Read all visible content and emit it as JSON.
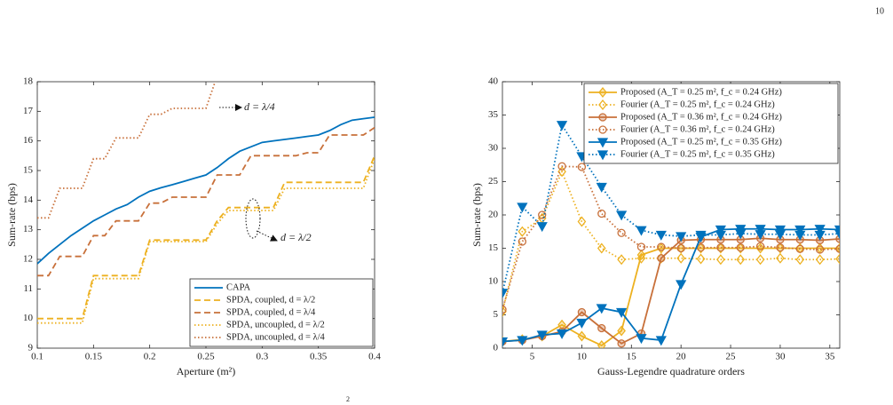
{
  "page_number": "10",
  "footer_fragment": "2",
  "chart_data": [
    {
      "type": "line",
      "xlabel": "Aperture (m²)",
      "ylabel": "Sum-rate (bps)",
      "x": [
        0.1,
        0.11,
        0.12,
        0.13,
        0.14,
        0.15,
        0.16,
        0.17,
        0.18,
        0.19,
        0.2,
        0.21,
        0.22,
        0.23,
        0.24,
        0.25,
        0.26,
        0.27,
        0.28,
        0.29,
        0.3,
        0.31,
        0.32,
        0.33,
        0.34,
        0.35,
        0.36,
        0.37,
        0.38,
        0.39,
        0.4
      ],
      "xlim": [
        0.1,
        0.4
      ],
      "xticks": [
        0.1,
        0.15,
        0.2,
        0.25,
        0.3,
        0.35,
        0.4
      ],
      "ylim": [
        9,
        18
      ],
      "yticks": [
        9,
        10,
        11,
        12,
        13,
        14,
        15,
        16,
        17,
        18
      ],
      "grid": false,
      "legend": "lower-right",
      "annotations": [
        "d = λ/4",
        "d = λ/2"
      ],
      "series": [
        {
          "name": "CAPA",
          "color": "#0072bd",
          "dash": "solid",
          "marker": "none",
          "values": [
            11.85,
            12.2,
            12.5,
            12.8,
            13.05,
            13.3,
            13.5,
            13.7,
            13.85,
            14.1,
            14.3,
            14.42,
            14.52,
            14.63,
            14.74,
            14.85,
            15.1,
            15.4,
            15.65,
            15.8,
            15.95,
            16.0,
            16.05,
            16.1,
            16.15,
            16.2,
            16.35,
            16.55,
            16.7,
            16.75,
            16.8
          ]
        },
        {
          "name": "SPDA, coupled, d = λ/2",
          "color": "#edb120",
          "dash": "dashed",
          "marker": "none",
          "values": [
            10.0,
            10.0,
            10.0,
            10.0,
            10.0,
            11.45,
            11.45,
            11.45,
            11.45,
            11.45,
            12.65,
            12.65,
            12.65,
            12.65,
            12.65,
            12.65,
            13.3,
            13.75,
            13.75,
            13.75,
            13.75,
            13.75,
            14.6,
            14.6,
            14.6,
            14.6,
            14.6,
            14.6,
            14.6,
            14.6,
            15.5
          ]
        },
        {
          "name": "SPDA, coupled, d = λ/4",
          "color": "#c8703a",
          "dash": "dashed",
          "marker": "none",
          "values": [
            11.45,
            11.45,
            12.1,
            12.1,
            12.1,
            12.8,
            12.8,
            13.3,
            13.3,
            13.3,
            13.9,
            13.9,
            14.1,
            14.1,
            14.1,
            14.1,
            14.85,
            14.85,
            14.85,
            15.5,
            15.5,
            15.5,
            15.5,
            15.5,
            15.6,
            15.6,
            16.2,
            16.2,
            16.2,
            16.2,
            16.45
          ]
        },
        {
          "name": "SPDA, uncoupled, d = λ/2",
          "color": "#edb120",
          "dash": "dotted",
          "marker": "none",
          "values": [
            9.85,
            9.85,
            9.85,
            9.85,
            9.85,
            11.35,
            11.35,
            11.35,
            11.35,
            11.35,
            12.6,
            12.6,
            12.6,
            12.6,
            12.6,
            12.6,
            13.2,
            13.65,
            13.65,
            13.65,
            13.65,
            13.65,
            14.4,
            14.4,
            14.4,
            14.4,
            14.4,
            14.4,
            14.4,
            14.4,
            15.4
          ]
        },
        {
          "name": "SPDA, uncoupled, d = λ/4",
          "color": "#c8703a",
          "dash": "dotted",
          "marker": "none",
          "values": [
            13.4,
            13.4,
            14.4,
            14.4,
            14.4,
            15.4,
            15.4,
            16.1,
            16.1,
            16.1,
            16.9,
            16.9,
            17.1,
            17.1,
            17.1,
            17.1,
            18.2,
            null,
            null,
            null,
            null,
            null,
            null,
            null,
            null,
            null,
            null,
            null,
            null,
            null,
            null
          ]
        }
      ]
    },
    {
      "type": "line",
      "xlabel": "Gauss-Legendre quadrature orders",
      "ylabel": "Sum-rate (bps)",
      "x": [
        2,
        4,
        6,
        8,
        10,
        12,
        14,
        16,
        18,
        20,
        22,
        24,
        26,
        28,
        30,
        32,
        34,
        36
      ],
      "xlim": [
        2,
        36
      ],
      "xticks": [
        5,
        10,
        15,
        20,
        25,
        30,
        35
      ],
      "ylim": [
        0,
        40
      ],
      "yticks": [
        0,
        5,
        10,
        15,
        20,
        25,
        30,
        35,
        40
      ],
      "grid": false,
      "legend": "upper-right",
      "annotations": [],
      "series": [
        {
          "name": "Proposed (A_T = 0.25 m², f_c = 0.24 GHz)",
          "color": "#edb120",
          "dash": "solid",
          "marker": "diamond",
          "values": [
            1.0,
            1.3,
            1.8,
            3.5,
            1.8,
            0.4,
            2.6,
            14.0,
            15.0,
            15.0,
            15.0,
            15.0,
            15.0,
            15.0,
            15.0,
            15.0,
            15.0,
            15.0
          ]
        },
        {
          "name": "Fourier (A_T = 0.25 m², f_c = 0.24 GHz)",
          "color": "#edb120",
          "dash": "dotted",
          "marker": "diamond",
          "values": [
            5.5,
            17.5,
            19.5,
            26.5,
            19.0,
            15.0,
            13.3,
            13.5,
            13.5,
            13.5,
            13.4,
            13.3,
            13.3,
            13.3,
            13.5,
            13.3,
            13.3,
            13.4
          ]
        },
        {
          "name": "Proposed (A_T = 0.36 m², f_c = 0.24 GHz)",
          "color": "#c8703a",
          "dash": "solid",
          "marker": "circle",
          "values": [
            1.0,
            1.2,
            1.8,
            2.5,
            5.4,
            3.0,
            0.7,
            2.2,
            13.5,
            16.2,
            16.3,
            16.3,
            16.3,
            16.5,
            16.3,
            16.3,
            16.2,
            16.4
          ]
        },
        {
          "name": "Fourier (A_T = 0.36 m², f_c = 0.24 GHz)",
          "color": "#c8703a",
          "dash": "dotted",
          "marker": "circle",
          "values": [
            5.8,
            16.0,
            20.0,
            27.3,
            27.2,
            20.2,
            17.3,
            15.2,
            15.2,
            15.0,
            15.1,
            15.1,
            15.1,
            15.3,
            15.1,
            14.9,
            14.8,
            14.9
          ]
        },
        {
          "name": "Proposed (A_T = 0.25 m², f_c = 0.35 GHz)",
          "color": "#0072bd",
          "dash": "solid",
          "marker": "triangle",
          "values": [
            1.0,
            1.2,
            2.0,
            2.2,
            3.8,
            6.0,
            5.4,
            1.5,
            1.2,
            9.6,
            16.7,
            17.8,
            17.9,
            17.9,
            17.8,
            17.8,
            17.9,
            17.8
          ]
        },
        {
          "name": "Fourier (A_T = 0.25 m², f_c = 0.35 GHz)",
          "color": "#0072bd",
          "dash": "dotted",
          "marker": "triangle",
          "values": [
            8.3,
            21.2,
            18.3,
            33.5,
            28.8,
            24.2,
            20.0,
            17.7,
            17.0,
            16.8,
            17.0,
            17.0,
            17.2,
            17.1,
            17.1,
            17.0,
            17.0,
            17.2
          ]
        }
      ]
    }
  ]
}
